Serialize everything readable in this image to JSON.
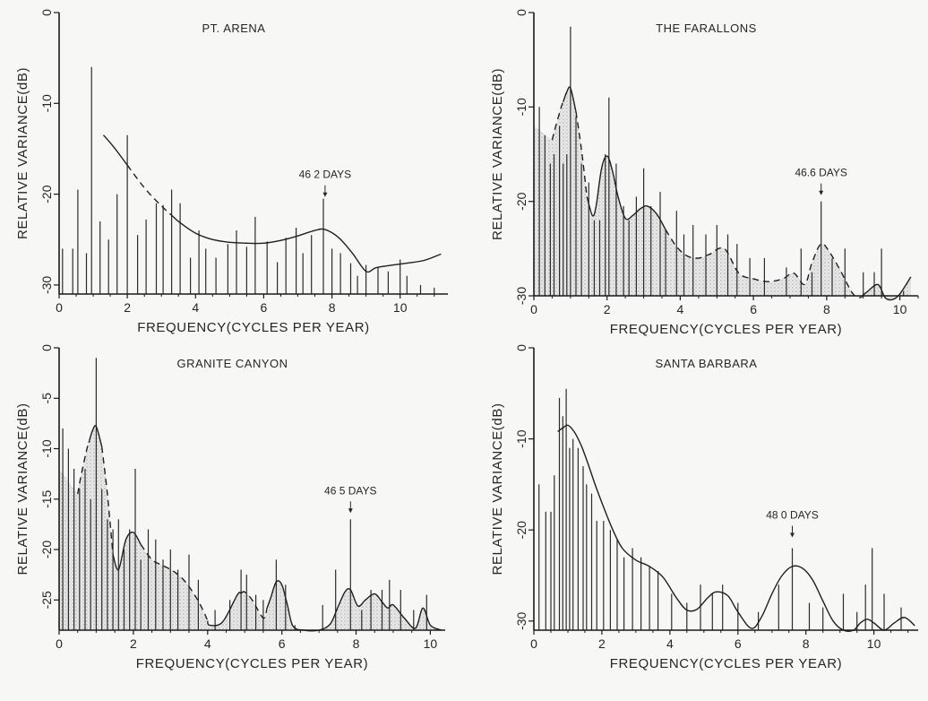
{
  "chart_data": [
    {
      "type": "line",
      "title": "PT. ARENA",
      "xlabel": "FREQUENCY(CYCLES PER YEAR)",
      "ylabel": "RELATIVE VARIANCE(dB)",
      "xlim": [
        0,
        11.4
      ],
      "ylim": [
        -31,
        0
      ],
      "xticks": [
        0,
        2,
        4,
        6,
        8,
        10
      ],
      "yticks": [
        0,
        -10,
        -20,
        -30
      ],
      "shaded": false,
      "annotation": {
        "text": "46 2 DAYS",
        "x": 7.8,
        "y": -21
      },
      "smooth": {
        "x": [
          1.3,
          1.6,
          2.0,
          2.5,
          3.0,
          3.5,
          4.0,
          4.5,
          5.0,
          5.5,
          6.0,
          6.5,
          7.0,
          7.5,
          7.8,
          8.2,
          8.6,
          9.0,
          9.3,
          9.8,
          10.2,
          10.7,
          11.2
        ],
        "y": [
          -13.5,
          -14.8,
          -16.8,
          -19.3,
          -21.3,
          -23.0,
          -24.3,
          -25.0,
          -25.3,
          -25.4,
          -25.4,
          -25.1,
          -24.6,
          -24.0,
          -23.9,
          -24.8,
          -26.5,
          -28.5,
          -28.1,
          -27.8,
          -27.6,
          -27.3,
          -26.6
        ]
      },
      "spikes": {
        "x": [
          0.1,
          0.4,
          0.55,
          0.8,
          0.95,
          1.2,
          1.45,
          1.7,
          2.0,
          2.3,
          2.55,
          2.85,
          3.05,
          3.3,
          3.55,
          3.85,
          4.1,
          4.3,
          4.6,
          4.95,
          5.2,
          5.5,
          5.75,
          6.1,
          6.4,
          6.65,
          6.95,
          7.15,
          7.4,
          7.75,
          8.0,
          8.25,
          8.55,
          8.75,
          9.0,
          9.35,
          9.65,
          10.0,
          10.2,
          10.6,
          11.0
        ],
        "y": [
          -26,
          -26,
          -19.5,
          -26.5,
          -6,
          -23,
          -25,
          -20,
          -13.5,
          -24.5,
          -22.8,
          -21,
          -21.2,
          -19.5,
          -21,
          -27,
          -24,
          -26,
          -27,
          -25.5,
          -24,
          -25.8,
          -22.5,
          -25.2,
          -27.5,
          -24.8,
          -23.7,
          -26.5,
          -24.5,
          -20.5,
          -26,
          -26.5,
          -27.6,
          -29,
          -27.8,
          -28,
          -28.5,
          -27.2,
          -29,
          -30,
          -30.3
        ]
      },
      "dashed_spans": [
        [
          2.0,
          3.3
        ]
      ]
    },
    {
      "type": "line",
      "title": "THE FARALLONS",
      "xlabel": "FREQUENCY(CYCLES PER YEAR)",
      "ylabel": "RELATIVE VARIANCE(dB)",
      "xlim": [
        0,
        10.5
      ],
      "ylim": [
        -30,
        0
      ],
      "xticks": [
        0,
        2,
        4,
        6,
        8,
        10
      ],
      "yticks": [
        0,
        -10,
        -20,
        -30
      ],
      "shaded": true,
      "annotation": {
        "text": "46.6 DAYS",
        "x": 7.85,
        "y": -20
      },
      "smooth": {
        "x": [
          0.5,
          0.6,
          0.75,
          0.9,
          1.0,
          1.15,
          1.3,
          1.45,
          1.6,
          1.7,
          1.85,
          2.0,
          2.15,
          2.3,
          2.5,
          2.7,
          2.9,
          3.1,
          3.35,
          3.6,
          3.9,
          4.2,
          4.5,
          4.8,
          5.2,
          5.6,
          6.0,
          6.4,
          6.8,
          7.1,
          7.4,
          7.6,
          7.85,
          8.1,
          8.4,
          8.7,
          8.9,
          9.1,
          9.4,
          9.6,
          9.8,
          10.0,
          10.3
        ],
        "y": [
          -13.5,
          -12,
          -10,
          -8.4,
          -8,
          -10.5,
          -14.5,
          -19.5,
          -21.5,
          -20.5,
          -16.5,
          -15.2,
          -16.8,
          -19.5,
          -21.8,
          -21.5,
          -20.8,
          -20.5,
          -21.3,
          -23.0,
          -24.8,
          -25.8,
          -26.0,
          -25.6,
          -25.0,
          -27.6,
          -28.2,
          -28.5,
          -28.2,
          -27.6,
          -28.8,
          -26.5,
          -24.5,
          -25.5,
          -27.5,
          -29.7,
          -30.2,
          -29.6,
          -28.8,
          -30.2,
          -30.4,
          -29.8,
          -28
        ]
      },
      "spikes": {
        "x": [
          0.15,
          0.3,
          0.45,
          0.55,
          0.7,
          0.8,
          0.9,
          1.0,
          1.15,
          1.3,
          1.5,
          1.65,
          1.8,
          1.95,
          2.05,
          2.25,
          2.45,
          2.6,
          2.8,
          3.0,
          3.2,
          3.45,
          3.6,
          3.9,
          4.1,
          4.35,
          4.7,
          5.0,
          5.3,
          5.55,
          5.9,
          6.3,
          6.9,
          7.3,
          7.6,
          7.85,
          8.15,
          8.5,
          9.0,
          9.3,
          9.5,
          10.1
        ],
        "y": [
          -10,
          -13,
          -16,
          -15,
          -12,
          -16,
          -15,
          -1.5,
          -11,
          -16,
          -18,
          -22,
          -22,
          -15,
          -9,
          -16,
          -20.5,
          -22,
          -19.5,
          -16.5,
          -20.5,
          -19,
          -23,
          -21,
          -23.5,
          -22.5,
          -23.5,
          -22.5,
          -23.5,
          -24.5,
          -26,
          -26,
          -27,
          -25,
          -27.5,
          -20,
          -26,
          -25,
          -27.5,
          -27.5,
          -25,
          -29.5
        ]
      },
      "dashed_spans": [
        [
          0.45,
          0.8
        ],
        [
          1.15,
          1.45
        ],
        [
          3.6,
          9.0
        ]
      ]
    },
    {
      "type": "line",
      "title": "GRANITE CANYON",
      "xlabel": "FREQUENCY(CYCLES PER YEAR)",
      "ylabel": "RELATIVE VARIANCE(dB)",
      "xlim": [
        0,
        10.4
      ],
      "ylim": [
        -28,
        0
      ],
      "xticks": [
        0,
        2,
        4,
        6,
        8,
        10
      ],
      "yticks": [
        0,
        -5,
        -10,
        -15,
        -20,
        -25
      ],
      "shaded": true,
      "annotation": {
        "text": "46 5 DAYS",
        "x": 7.85,
        "y": -17
      },
      "smooth": {
        "x": [
          0.5,
          0.6,
          0.75,
          0.9,
          1.0,
          1.15,
          1.3,
          1.45,
          1.6,
          1.8,
          2.0,
          2.2,
          2.5,
          2.8,
          3.1,
          3.4,
          3.7,
          3.9,
          4.05,
          4.4,
          4.8,
          5.0,
          5.2,
          5.5,
          5.7,
          5.85,
          6.0,
          6.15,
          6.3,
          6.6,
          7.0,
          7.3,
          7.5,
          7.7,
          7.85,
          8.05,
          8.25,
          8.5,
          8.7,
          8.85,
          9.0,
          9.3,
          9.6,
          9.8,
          10.0,
          10.3
        ],
        "y": [
          -14.5,
          -12.5,
          -10,
          -8.2,
          -7.8,
          -9.8,
          -14.5,
          -20.5,
          -22,
          -19,
          -18.3,
          -19.5,
          -21,
          -21.6,
          -22.2,
          -23.2,
          -24.8,
          -26.2,
          -27.5,
          -27.2,
          -24.5,
          -24.2,
          -25.0,
          -26.8,
          -24.8,
          -23.2,
          -23.5,
          -25.5,
          -27.6,
          -28,
          -28,
          -27.4,
          -25.8,
          -24.2,
          -24,
          -25.6,
          -25.0,
          -24.4,
          -25.2,
          -25.8,
          -25.5,
          -26.8,
          -27.8,
          -25.8,
          -27.5,
          -28
        ]
      },
      "spikes": {
        "x": [
          0.1,
          0.25,
          0.4,
          0.55,
          0.7,
          0.85,
          1.0,
          1.15,
          1.3,
          1.45,
          1.6,
          1.75,
          1.9,
          2.05,
          2.2,
          2.4,
          2.6,
          2.8,
          3.0,
          3.2,
          3.5,
          3.75,
          4.2,
          4.6,
          4.9,
          5.05,
          5.3,
          5.5,
          5.85,
          6.1,
          6.35,
          7.1,
          7.45,
          7.85,
          8.15,
          8.4,
          8.7,
          8.9,
          9.2,
          9.55,
          9.9
        ],
        "y": [
          -8,
          -10,
          -12,
          -14,
          -12,
          -15,
          -1,
          -14,
          -17,
          -18,
          -17,
          -20,
          -18,
          -12,
          -21,
          -18,
          -19,
          -21,
          -20,
          -22,
          -20.5,
          -23,
          -26,
          -25,
          -22,
          -22.5,
          -24.5,
          -25,
          -21,
          -23.5,
          -27.5,
          -25.5,
          -22,
          -17,
          -26,
          -24,
          -24,
          -23,
          -24,
          -26,
          -24.5
        ]
      },
      "dashed_spans": [
        [
          0.3,
          0.8
        ],
        [
          1.15,
          1.45
        ],
        [
          2.2,
          4.0
        ],
        [
          4.9,
          5.6
        ]
      ]
    },
    {
      "type": "line",
      "title": "SANTA BARBARA",
      "xlabel": "FREQUENCY(CYCLES PER YEAR)",
      "ylabel": "RELATIVE VARIANCE(dB)",
      "xlim": [
        0,
        11.3
      ],
      "ylim": [
        -31,
        0
      ],
      "xticks": [
        0,
        2,
        4,
        6,
        8,
        10
      ],
      "yticks": [
        0,
        -10,
        -20,
        -30
      ],
      "shaded": false,
      "annotation": {
        "text": "48 0 DAYS",
        "x": 7.6,
        "y": -21.5
      },
      "smooth": {
        "x": [
          0.7,
          0.85,
          1.0,
          1.2,
          1.4,
          1.6,
          1.8,
          2.0,
          2.3,
          2.6,
          3.0,
          3.4,
          3.8,
          4.2,
          4.5,
          4.8,
          5.1,
          5.35,
          5.7,
          6.0,
          6.4,
          6.7,
          7.0,
          7.3,
          7.6,
          7.9,
          8.2,
          8.5,
          8.8,
          9.1,
          9.4,
          9.6,
          9.8,
          10.0,
          10.3,
          10.6,
          10.9,
          11.2
        ],
        "y": [
          -9.2,
          -8.8,
          -8.5,
          -9.3,
          -10.8,
          -12.8,
          -15.0,
          -17.0,
          -19.8,
          -22.0,
          -23.3,
          -24.0,
          -25.2,
          -27.5,
          -28.8,
          -28.7,
          -27.5,
          -26.8,
          -27.2,
          -29.0,
          -30.8,
          -29.5,
          -27.0,
          -25.0,
          -24.0,
          -24.2,
          -25.5,
          -27.8,
          -30.0,
          -31.0,
          -31.0,
          -30.2,
          -29.8,
          -30.2,
          -31.0,
          -30.2,
          -29.6,
          -30.5
        ]
      },
      "spikes": {
        "x": [
          0.15,
          0.35,
          0.5,
          0.6,
          0.75,
          0.85,
          0.95,
          1.05,
          1.15,
          1.3,
          1.45,
          1.55,
          1.7,
          1.85,
          2.05,
          2.25,
          2.45,
          2.65,
          2.9,
          3.15,
          3.4,
          3.65,
          4.05,
          4.5,
          4.9,
          5.25,
          5.55,
          6.0,
          6.6,
          7.2,
          7.6,
          8.1,
          8.5,
          9.1,
          9.5,
          9.75,
          9.95,
          10.3,
          10.8
        ],
        "y": [
          -15,
          -18,
          -18,
          -14,
          -5.5,
          -7.5,
          -4.5,
          -11,
          -10,
          -11,
          -13,
          -15,
          -16,
          -19,
          -19,
          -20,
          -21,
          -23,
          -22,
          -23,
          -24,
          -24.5,
          -27,
          -28,
          -26,
          -27,
          -26,
          -28,
          -29,
          -26,
          -22,
          -28,
          -28.5,
          -27,
          -29,
          -26,
          -22,
          -27,
          -28.5
        ]
      },
      "dashed_spans": []
    }
  ]
}
